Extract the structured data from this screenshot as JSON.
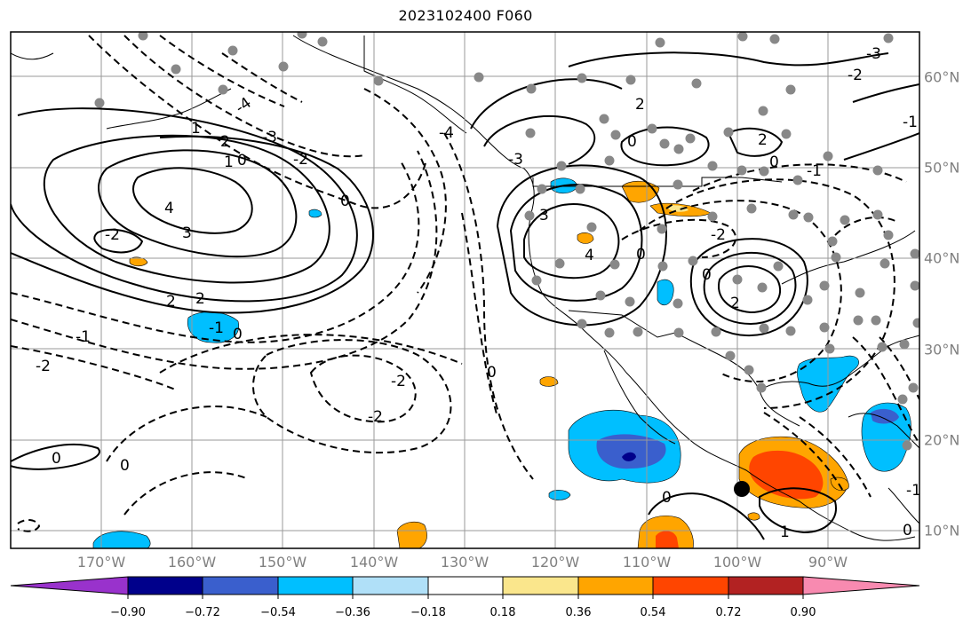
{
  "title": "2023102400 F060",
  "lat_labels": [
    "60°N",
    "50°N",
    "40°N",
    "30°N",
    "20°N",
    "10°N"
  ],
  "lon_labels": [
    "170°W",
    "160°W",
    "150°W",
    "140°W",
    "130°W",
    "120°W",
    "110°W",
    "100°W",
    "90°W"
  ],
  "colorbar": {
    "tick_labels": [
      "−0.90",
      "−0.72",
      "−0.54",
      "−0.36",
      "−0.18",
      "0.18",
      "0.36",
      "0.54",
      "0.72",
      "0.90"
    ],
    "colors": [
      "#9932cc",
      "#00008b",
      "#3a5fcd",
      "#00bfff",
      "#b0e0f8",
      "#ffffff",
      "#fae68c",
      "#ffa500",
      "#ff4500",
      "#b22222",
      "#f88ab0"
    ]
  },
  "contour_labels": [
    "-2",
    "-1",
    "0",
    "1",
    "2",
    "3",
    "4",
    "-3",
    "-4"
  ],
  "colors": {
    "station": "#888888",
    "graticule": "#9a9a9a",
    "marker": "#000000"
  }
}
